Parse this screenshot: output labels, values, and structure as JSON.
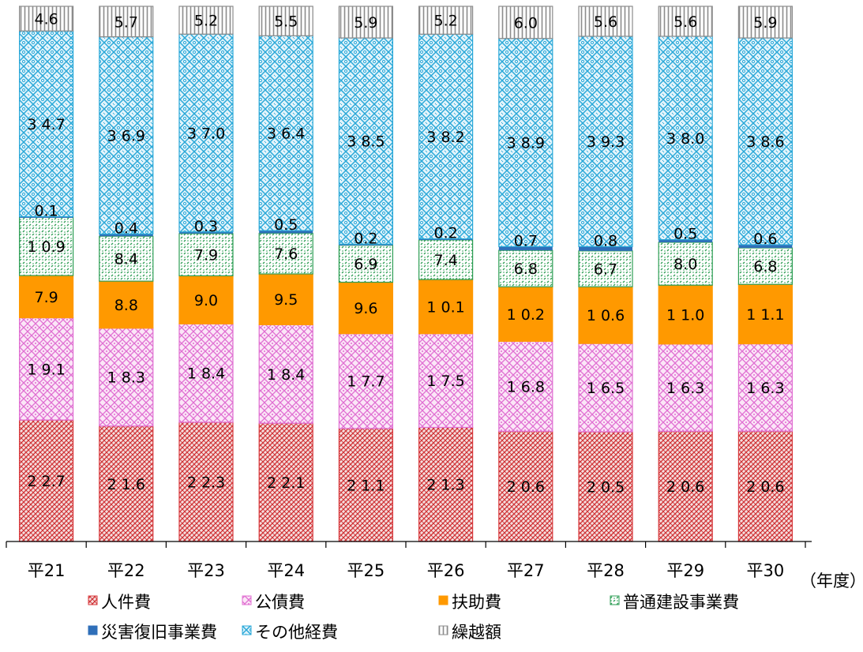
{
  "chart_data": {
    "type": "bar",
    "stacked": true,
    "unit_label": "（年度）",
    "categories": [
      "平21",
      "平22",
      "平23",
      "平24",
      "平25",
      "平26",
      "平27",
      "平28",
      "平29",
      "平30"
    ],
    "series": [
      {
        "name": "人件費",
        "color": "#d8393c",
        "pattern": "crosshatch",
        "values": [
          22.7,
          21.6,
          22.3,
          22.1,
          21.1,
          21.3,
          20.6,
          20.5,
          20.6,
          20.6
        ],
        "labels": [
          "22.7",
          "21.6",
          "22.3",
          "22.1",
          "21.1",
          "21.3",
          "20.6",
          "20.5",
          "20.6",
          "20.6"
        ]
      },
      {
        "name": "公債費",
        "color": "#e06fd2",
        "pattern": "lattice",
        "values": [
          19.1,
          18.3,
          18.4,
          18.4,
          17.7,
          17.5,
          16.8,
          16.5,
          16.3,
          16.3
        ],
        "labels": [
          "19.1",
          "18.3",
          "18.4",
          "18.4",
          "17.7",
          "17.5",
          "16.8",
          "16.5",
          "16.3",
          "16.3"
        ]
      },
      {
        "name": "扶助費",
        "color": "#ff9900",
        "pattern": "solid",
        "values": [
          7.9,
          8.8,
          9.0,
          9.5,
          9.6,
          10.1,
          10.2,
          10.6,
          11.0,
          11.1
        ],
        "labels": [
          "7.9",
          "8.8",
          "9.0",
          "9.5",
          "9.6",
          "10.1",
          "10.2",
          "10.6",
          "11.0",
          "11.1"
        ]
      },
      {
        "name": "普通建設事業費",
        "color": "#2e9e55",
        "pattern": "dots",
        "values": [
          10.9,
          8.4,
          7.9,
          7.6,
          6.9,
          7.4,
          6.8,
          6.7,
          8.0,
          6.8
        ],
        "labels": [
          "10.9",
          "8.4",
          "7.9",
          "7.6",
          "6.9",
          "7.4",
          "6.8",
          "6.7",
          "8.0",
          "6.8"
        ]
      },
      {
        "name": "災害復旧事業費",
        "color": "#2f6fb9",
        "pattern": "solid",
        "values": [
          0.1,
          0.4,
          0.3,
          0.5,
          0.2,
          0.2,
          0.7,
          0.8,
          0.5,
          0.6
        ],
        "labels": [
          "0.1",
          "0.4",
          "0.3",
          "0.5",
          "0.2",
          "0.2",
          "0.7",
          "0.8",
          "0.5",
          "0.6"
        ]
      },
      {
        "name": "その他経費",
        "color": "#2aa8d8",
        "pattern": "lace",
        "values": [
          34.7,
          36.9,
          37.0,
          36.4,
          38.5,
          38.2,
          38.9,
          39.3,
          38.0,
          38.6
        ],
        "labels": [
          "34.7",
          "36.9",
          "37.0",
          "36.4",
          "38.5",
          "38.2",
          "38.9",
          "39.3",
          "38.0",
          "38.6"
        ]
      },
      {
        "name": "繰越額",
        "color": "#8c8c8c",
        "pattern": "vstripes",
        "values": [
          4.6,
          5.7,
          5.2,
          5.5,
          5.9,
          5.2,
          6.0,
          5.6,
          5.6,
          5.9
        ],
        "labels": [
          "4.6",
          "5.7",
          "5.2",
          "5.5",
          "5.9",
          "5.2",
          "6.0",
          "5.6",
          "5.6",
          "5.9"
        ]
      }
    ],
    "legend": {
      "position": "bottom",
      "items": [
        "人件費",
        "公債費",
        "扶助費",
        "普通建設事業費",
        "災害復旧事業費",
        "その他経費",
        "繰越額"
      ]
    },
    "grid": false
  }
}
